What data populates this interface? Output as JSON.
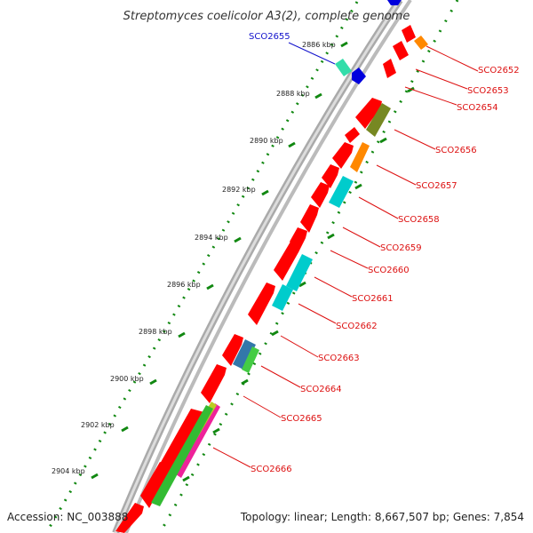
{
  "header": {
    "title": "Streptomyces coelicolor A3(2), complete genome"
  },
  "footer": {
    "accession": "Accession: NC_003888",
    "topology": "Topology: linear; Length: 8,667,507 bp; Genes: 7,854"
  },
  "colors": {
    "ruler": "#118811",
    "forward_label": "#dd1111",
    "reverse_label": "#1111cc",
    "forward_gene": "#ff0000",
    "backbone": "#888888"
  },
  "kbp_ticks": [
    "2886 kbp",
    "2888 kbp",
    "2890 kbp",
    "2892 kbp",
    "2894 kbp",
    "2896 kbp",
    "2898 kbp",
    "2900 kbp",
    "2902 kbp",
    "2904 kbp"
  ],
  "genes_reverse": [
    {
      "label": "SCO2655"
    }
  ],
  "genes_forward": [
    {
      "label": "SCO2652"
    },
    {
      "label": "SCO2653"
    },
    {
      "label": "SCO2654"
    },
    {
      "label": "SCO2656"
    },
    {
      "label": "SCO2657"
    },
    {
      "label": "SCO2658"
    },
    {
      "label": "SCO2659"
    },
    {
      "label": "SCO2660"
    },
    {
      "label": "SCO2661"
    },
    {
      "label": "SCO2662"
    },
    {
      "label": "SCO2663"
    },
    {
      "label": "SCO2664"
    },
    {
      "label": "SCO2665"
    },
    {
      "label": "SCO2666"
    }
  ]
}
